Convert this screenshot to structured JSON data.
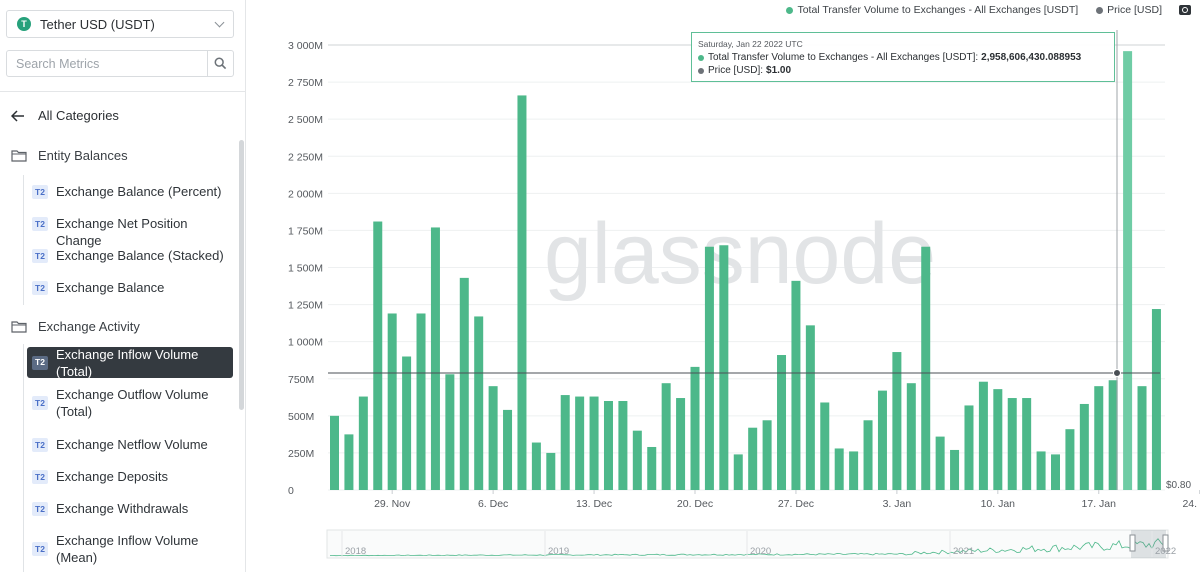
{
  "sidebar": {
    "asset": {
      "logo_letter": "T",
      "name": "Tether USD (USDT)"
    },
    "search": {
      "placeholder": "Search Metrics"
    },
    "back_label": "All Categories",
    "categories": [
      {
        "label": "Entity Balances",
        "items": [
          {
            "badge": "T2",
            "label": "Exchange Balance (Percent)"
          },
          {
            "badge": "T2",
            "label": "Exchange Net Position Change"
          },
          {
            "badge": "T2",
            "label": "Exchange Balance (Stacked)"
          },
          {
            "badge": "T2",
            "label": "Exchange Balance"
          }
        ]
      },
      {
        "label": "Exchange Activity",
        "items": [
          {
            "badge": "T2",
            "label": "Exchange Inflow Volume (Total)",
            "active": true
          },
          {
            "badge": "T2",
            "label": "Exchange Outflow Volume (Total)"
          },
          {
            "badge": "T2",
            "label": "Exchange Netflow Volume"
          },
          {
            "badge": "T2",
            "label": "Exchange Deposits"
          },
          {
            "badge": "T2",
            "label": "Exchange Withdrawals"
          },
          {
            "badge": "T2",
            "label": "Exchange Inflow Volume (Mean)"
          }
        ]
      }
    ]
  },
  "legend": {
    "series1": "Total Transfer Volume to Exchanges - All Exchanges [USDT]",
    "series2": "Price [USD]"
  },
  "tooltip": {
    "date": "Saturday, Jan 22 2022 UTC",
    "line1_label": "Total Transfer Volume to Exchanges - All Exchanges [USDT]:",
    "line1_value": "2,958,606,430.088953",
    "line2_label": "Price [USD]:",
    "line2_value": "$1.00"
  },
  "watermark": "glassnode",
  "colors": {
    "bar": "#4db88a",
    "bar_highlight": "#6fcca5",
    "price_line": "#4a4f55",
    "accent": "#26a17b"
  },
  "chart_data": {
    "type": "bar",
    "x_start": "Nov 25 2021",
    "x_end": "Jan 24 2022",
    "xlabel": "",
    "ylabel": "",
    "ylim": [
      0,
      3000000000
    ],
    "y_ticks": [
      "0",
      "250M",
      "500M",
      "750M",
      "1 000M",
      "1 250M",
      "1 500M",
      "1 750M",
      "2 000M",
      "2 250M",
      "2 500M",
      "2 750M",
      "3 000M"
    ],
    "x_ticks": [
      "29. Nov",
      "6. Dec",
      "13. Dec",
      "20. Dec",
      "27. Dec",
      "3. Jan",
      "10. Jan",
      "17. Jan",
      "24. Jan"
    ],
    "right_axis_label": "$0.80",
    "series": [
      {
        "name": "Total Transfer Volume to Exchanges - All Exchanges [USDT]",
        "values": [
          500,
          375,
          630,
          1810,
          1190,
          900,
          1190,
          1770,
          780,
          1430,
          1170,
          700,
          540,
          2660,
          320,
          250,
          640,
          630,
          630,
          600,
          600,
          400,
          290,
          720,
          620,
          830,
          1640,
          1650,
          240,
          420,
          470,
          910,
          1410,
          1110,
          590,
          280,
          260,
          470,
          670,
          930,
          720,
          1640,
          360,
          270,
          570,
          730,
          680,
          620,
          620,
          260,
          240,
          410,
          580,
          700,
          740,
          2958.6,
          700,
          1220
        ]
      },
      {
        "name": "Price [USD]",
        "values": [
          1.0
        ]
      }
    ],
    "highlight_index": 55,
    "navigator": {
      "years": [
        "2018",
        "2019",
        "2020",
        "2021",
        "2022"
      ]
    }
  }
}
